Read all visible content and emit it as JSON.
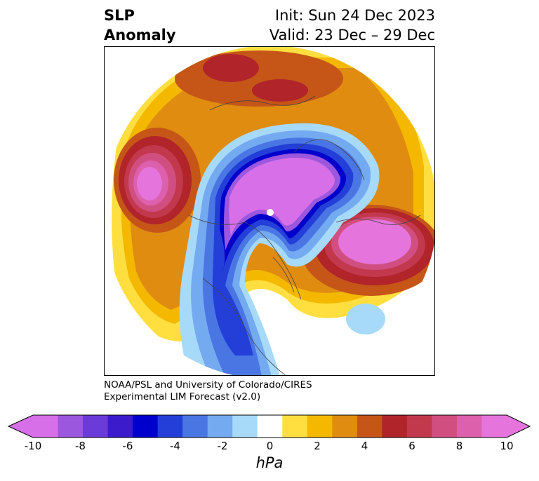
{
  "header": {
    "title_line1": "SLP",
    "title_line2": "Anomaly",
    "init_text": "Init: Sun 24 Dec 2023",
    "valid_text": "Valid: 23 Dec – 29 Dec"
  },
  "map": {
    "projection": "polar-stereographic",
    "contour_field": "SLP Anomaly"
  },
  "credit": {
    "line1": "NOAA/PSL and University of Colorado/CIRES",
    "line2": "Experimental LIM Forecast (v2.0)"
  },
  "colorbar": {
    "unit": "hPa",
    "tick_labels": [
      "-10",
      "-8",
      "-6",
      "-4",
      "-2",
      "0",
      "2",
      "4",
      "6",
      "8",
      "10"
    ],
    "colors": [
      "#d66fe8",
      "#9b57dd",
      "#6b3bd9",
      "#3b1bcc",
      "#0000cc",
      "#233fd8",
      "#4a76e4",
      "#74aaf0",
      "#a7daf8",
      "#ffffff",
      "#ffdf40",
      "#f4b800",
      "#df8c10",
      "#c65518",
      "#b0242a",
      "#c2384c",
      "#d14f80",
      "#dc60ab",
      "#e575dc"
    ]
  }
}
